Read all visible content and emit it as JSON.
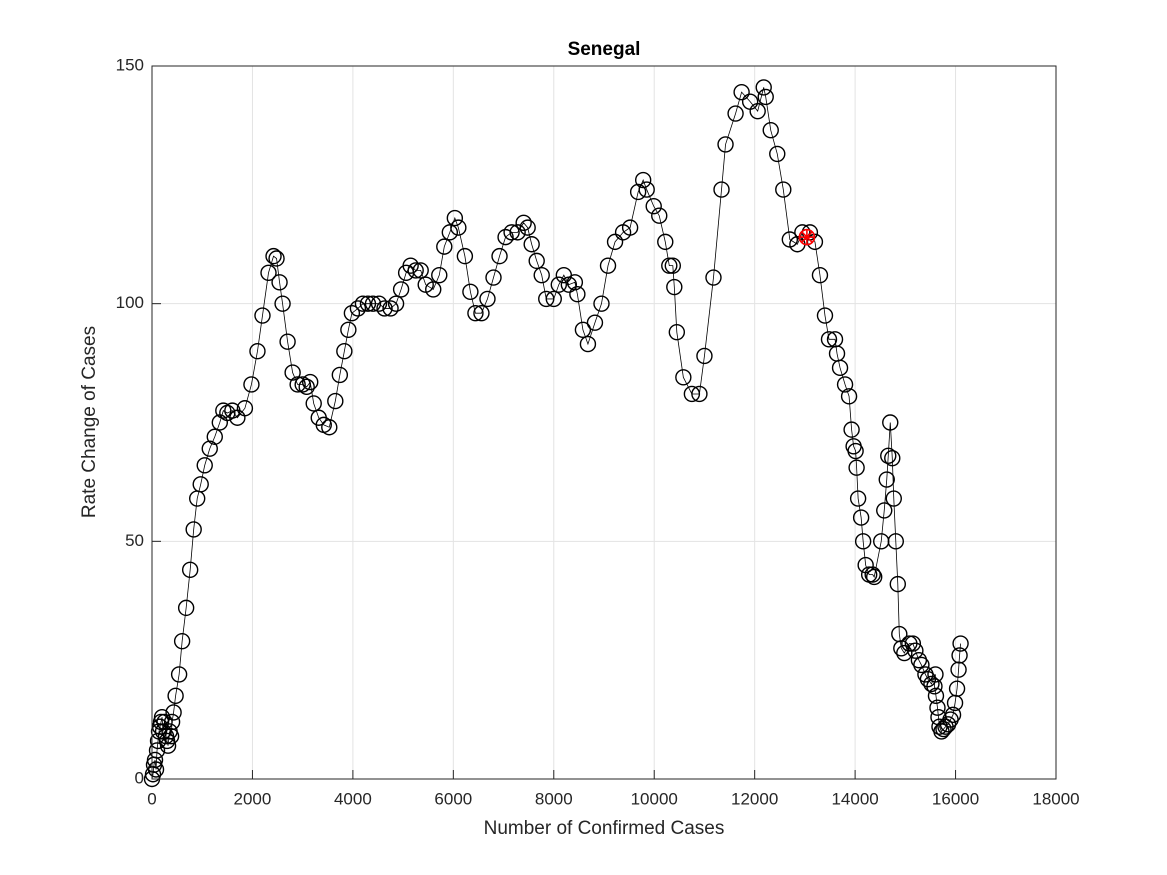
{
  "chart_data": {
    "type": "scatter-line",
    "title": "Senegal",
    "x_label": "Number of Confirmed Cases",
    "y_label": "Rate Change of Cases",
    "xlim": [
      0,
      18000
    ],
    "xticks": [
      0,
      2000,
      4000,
      6000,
      8000,
      10000,
      12000,
      14000,
      16000,
      18000
    ],
    "ylim": [
      0,
      150
    ],
    "yticks": [
      0,
      50,
      100,
      150
    ],
    "grid": true,
    "color": "#000000",
    "highlight_color": "#ff0000",
    "highlight_index": 139,
    "x": [
      0,
      20,
      40,
      60,
      80,
      100,
      120,
      140,
      160,
      180,
      200,
      220,
      250,
      280,
      300,
      320,
      350,
      380,
      400,
      430,
      470,
      540,
      600,
      680,
      760,
      830,
      900,
      970,
      1050,
      1150,
      1250,
      1350,
      1420,
      1500,
      1600,
      1700,
      1850,
      1980,
      2100,
      2200,
      2320,
      2420,
      2480,
      2540,
      2600,
      2700,
      2800,
      2900,
      3000,
      3080,
      3150,
      3220,
      3320,
      3420,
      3530,
      3650,
      3740,
      3830,
      3910,
      3980,
      4100,
      4200,
      4300,
      4400,
      4520,
      4630,
      4750,
      4860,
      4960,
      5060,
      5150,
      5250,
      5350,
      5450,
      5600,
      5720,
      5820,
      5930,
      6030,
      6100,
      6230,
      6340,
      6440,
      6560,
      6680,
      6800,
      6920,
      7040,
      7160,
      7280,
      7400,
      7480,
      7560,
      7660,
      7760,
      7850,
      8000,
      8100,
      8200,
      8300,
      8420,
      8470,
      8580,
      8680,
      8820,
      8950,
      9080,
      9220,
      9380,
      9520,
      9680,
      9780,
      9850,
      9990,
      10100,
      10220,
      10300,
      10370,
      10400,
      10450,
      10580,
      10750,
      10900,
      11000,
      11180,
      11340,
      11420,
      11620,
      11740,
      11910,
      12060,
      12180,
      12220,
      12320,
      12450,
      12570,
      12700,
      12850,
      12950,
      13040,
      13100,
      13200,
      13300,
      13400,
      13480,
      13600,
      13640,
      13700,
      13800,
      13880,
      13930,
      13970,
      14010,
      14030,
      14060,
      14120,
      14160,
      14210,
      14280,
      14350,
      14380,
      14520,
      14580,
      14630,
      14660,
      14700,
      14740,
      14770,
      14810,
      14850,
      14880,
      14920,
      14980,
      15080,
      15150,
      15200,
      15270,
      15320,
      15400,
      15450,
      15520,
      15600,
      15580,
      15610,
      15640,
      15660,
      15680,
      15720,
      15760,
      15800,
      15850,
      15900,
      15950,
      15990,
      16030,
      16060,
      16080,
      16100
    ],
    "values": [
      0,
      1,
      3,
      4,
      2,
      6,
      8,
      10,
      11,
      12,
      13,
      10,
      12,
      9,
      8,
      7,
      10,
      9,
      12,
      14,
      17.5,
      22,
      29,
      36,
      44,
      52.5,
      59,
      62,
      66,
      69.5,
      72,
      75,
      77.5,
      77,
      77.5,
      76,
      78,
      83,
      90,
      97.5,
      106.5,
      110,
      109.5,
      104.5,
      100,
      92,
      85.5,
      83,
      83,
      82.5,
      83.5,
      79,
      76,
      74.5,
      74,
      79.5,
      85,
      90,
      94.5,
      98,
      99,
      100,
      100,
      100,
      100,
      99,
      99,
      100,
      103,
      106.5,
      108,
      107,
      107,
      104,
      103,
      106,
      112,
      115,
      118,
      116,
      110,
      102.5,
      98,
      98,
      101,
      105.5,
      110,
      114,
      115,
      115,
      117,
      116,
      112.5,
      109,
      106,
      101,
      101,
      104,
      106,
      104,
      104.5,
      102,
      94.5,
      91.5,
      96,
      100,
      108,
      113,
      115,
      116,
      123.5,
      126,
      124,
      120.5,
      118.5,
      113,
      108,
      108,
      103.5,
      94,
      84.5,
      81,
      81,
      89,
      105.5,
      124,
      133.5,
      140,
      144.5,
      142.5,
      140.5,
      145.5,
      143.5,
      136.5,
      131.5,
      124,
      113.5,
      112.5,
      115,
      114,
      115,
      113,
      106,
      97.5,
      92.5,
      92.5,
      89.5,
      86.5,
      83,
      80.5,
      73.5,
      70,
      69,
      65.5,
      59,
      55,
      50,
      45,
      43,
      43,
      42.5,
      50,
      56.5,
      63,
      68,
      75,
      67.5,
      59,
      50,
      41,
      30.5,
      27.5,
      26.5,
      28.5,
      28.5,
      27,
      25,
      24,
      22,
      21,
      20,
      22,
      19.5,
      17.5,
      15,
      13,
      11,
      10,
      10.5,
      11,
      11.5,
      12.5,
      13.5,
      16,
      19,
      23,
      26,
      28.5
    ]
  }
}
